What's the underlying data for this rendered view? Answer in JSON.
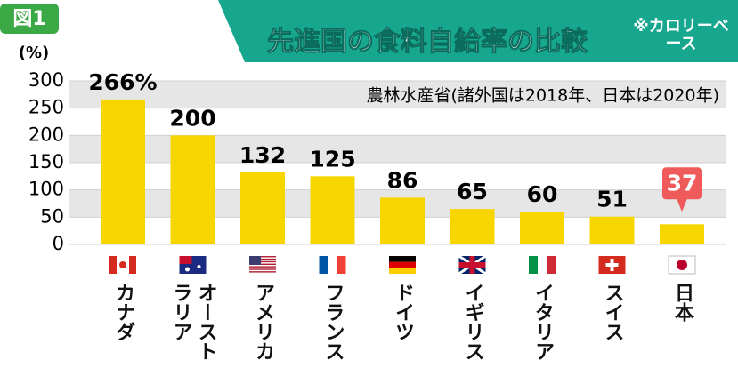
{
  "figure_label": "図1",
  "note": "※カロリーベース",
  "chart_data": {
    "type": "bar",
    "title": "先進国の食料自給率の比較",
    "y_label": "(%)",
    "subtitle": "農林水産省(諸外国は2018年、日本は2020年)",
    "categories": [
      "カナダ",
      "オーストラリア",
      "アメリカ",
      "フランス",
      "ドイツ",
      "イギリス",
      "イタリア",
      "スイス",
      "日本"
    ],
    "values": [
      266,
      200,
      132,
      125,
      86,
      65,
      60,
      51,
      37
    ],
    "value_labels": [
      "266%",
      "200",
      "132",
      "125",
      "86",
      "65",
      "60",
      "51",
      "37"
    ],
    "color": "#f7d600",
    "highlight_color": "#ef5b5b",
    "ylim": [
      0,
      300
    ],
    "yticks": [
      0,
      50,
      100,
      150,
      200,
      250,
      300
    ],
    "grid": true
  }
}
